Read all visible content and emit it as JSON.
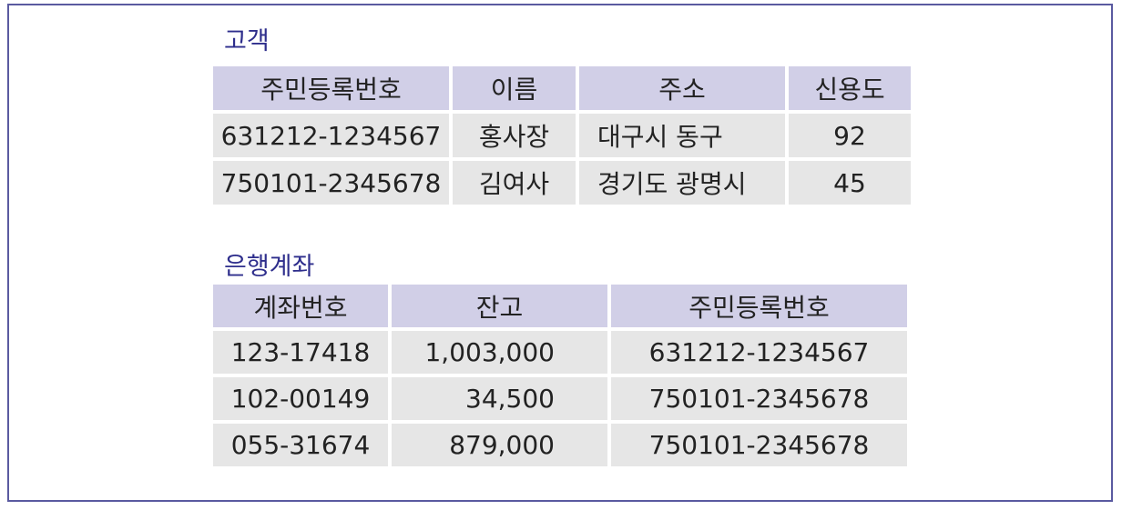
{
  "customer": {
    "title": "고객",
    "headers": [
      "주민등록번호",
      "이름",
      "주소",
      "신용도"
    ],
    "rows": [
      [
        "631212-1234567",
        "홍사장",
        "대구시 동구",
        "92"
      ],
      [
        "750101-2345678",
        "김여사",
        "경기도 광명시",
        "45"
      ]
    ]
  },
  "account": {
    "title": "은행계좌",
    "headers": [
      "계좌번호",
      "잔고",
      "주민등록번호"
    ],
    "rows": [
      [
        "123-17418",
        "1,003,000",
        "631212-1234567"
      ],
      [
        "102-00149",
        "34,500",
        "750101-2345678"
      ],
      [
        "055-31674",
        "879,000",
        "750101-2345678"
      ]
    ]
  },
  "colors": {
    "header_bg": "#d1cfe7",
    "cell_bg": "#e6e6e6",
    "title_color": "#2e2e8c",
    "frame_border": "#5a5aa0"
  }
}
